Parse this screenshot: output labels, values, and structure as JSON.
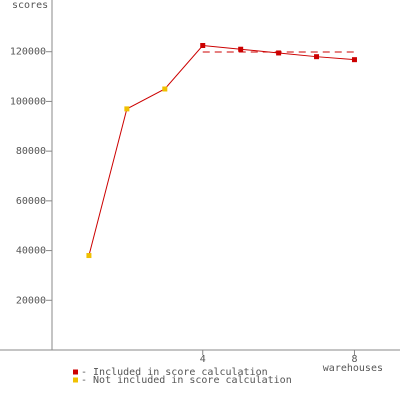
{
  "chart_data": {
    "type": "line",
    "y_label": "scores",
    "x_label": "warehouses",
    "x": [
      1,
      2,
      3,
      4,
      5,
      6,
      7,
      8
    ],
    "values": [
      38000,
      97000,
      105000,
      122500,
      121000,
      119500,
      118000,
      116800
    ],
    "line_color": "#cc0000",
    "point_legend": [
      1,
      1,
      1,
      0,
      0,
      0,
      0,
      0
    ],
    "legend": [
      {
        "label": "- Included in score calculation",
        "color": "#cc0000"
      },
      {
        "label": "- Not included in score calculation",
        "color": "#f0c000"
      }
    ],
    "score_line": {
      "value": 119900,
      "x": [
        4,
        8
      ]
    },
    "xlim": [
      0,
      9.2
    ],
    "xticks": [
      4,
      8
    ],
    "ylim": [
      0,
      140000
    ],
    "yticks": [
      20000,
      40000,
      60000,
      80000,
      100000,
      120000
    ]
  }
}
